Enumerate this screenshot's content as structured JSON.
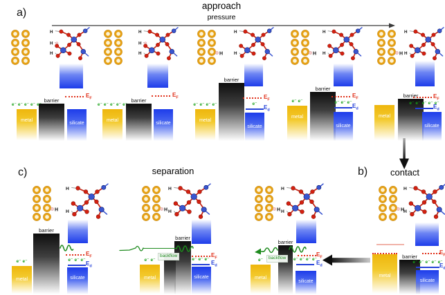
{
  "titles": {
    "approach": "approach",
    "pressure": "pressure",
    "section_a": "a)",
    "section_b": "b)",
    "section_c": "c)",
    "separation": "separation",
    "contact": "contact"
  },
  "labels": {
    "metal": "metal",
    "barrier": "barrier",
    "silicate": "silicate",
    "backflow": "backflow",
    "electron": "e⁻",
    "fermi_base": "E",
    "fermi_sub": "F",
    "defect_base": "E",
    "defect_sub": "d",
    "hydrogen": "H"
  },
  "colors": {
    "metal_gold": "#eeb60c",
    "gold_atom_ring": "#e7a114",
    "gold_atom_edge": "#a96f00",
    "barrier_dark": "#0e0e0e",
    "silicate_blue": "#1d3cea",
    "fermi_red": "#e0301a",
    "defect_blue": "#2340d8",
    "electron_green": "#17a017",
    "backflow_green": "#1d8a1d",
    "oxygen_red": "#d42010",
    "silicon_blue": "#3a55d0",
    "hydrogen_pink": "#f5caca",
    "faint_contact_line": "#f1b3a9",
    "arrow_dark": "#111111"
  },
  "panel_a": {
    "units": [
      {
        "hydrogen_on_gold": false,
        "molecule_h_count": 3,
        "metal_electrons": 5,
        "show_ed": false,
        "ed_electrons": 0
      },
      {
        "hydrogen_on_gold": false,
        "molecule_h_count": 3,
        "metal_electrons": 5,
        "show_ed": false,
        "ed_electrons": 0
      },
      {
        "hydrogen_on_gold": true,
        "molecule_h_count": 2,
        "metal_electrons": 4,
        "show_ed": true,
        "ed_electrons": 1
      },
      {
        "hydrogen_on_gold": true,
        "molecule_h_count": 2,
        "metal_electrons": 2,
        "show_ed": true,
        "ed_electrons": 3
      },
      {
        "hydrogen_on_gold": true,
        "molecule_h_count": 2,
        "metal_electrons": 0,
        "show_ed": true,
        "ed_electrons": 5
      }
    ]
  },
  "panel_b": {
    "unit": {
      "hydrogen_on_gold": true,
      "molecule_h_count": 2,
      "metal_electrons": 0,
      "show_ed": true,
      "ed_electrons": 5,
      "fermi_on_metal_top": true,
      "approach_line": true
    }
  },
  "panel_c": {
    "units": [
      {
        "hydrogen_on_gold": true,
        "molecule_h_count": 2,
        "metal_electrons": 2,
        "show_ed": true,
        "ed_electrons": 3,
        "wave": "blocked",
        "backflow_label": false
      },
      {
        "hydrogen_on_gold": true,
        "molecule_h_count": 2,
        "metal_electrons": 2,
        "show_ed": true,
        "ed_electrons": 3,
        "wave": "through",
        "backflow_label": true
      },
      {
        "hydrogen_on_gold": true,
        "molecule_h_count": 2,
        "metal_electrons": 1,
        "show_ed": true,
        "ed_electrons": 4,
        "wave": "arrived",
        "backflow_label": true
      }
    ]
  }
}
